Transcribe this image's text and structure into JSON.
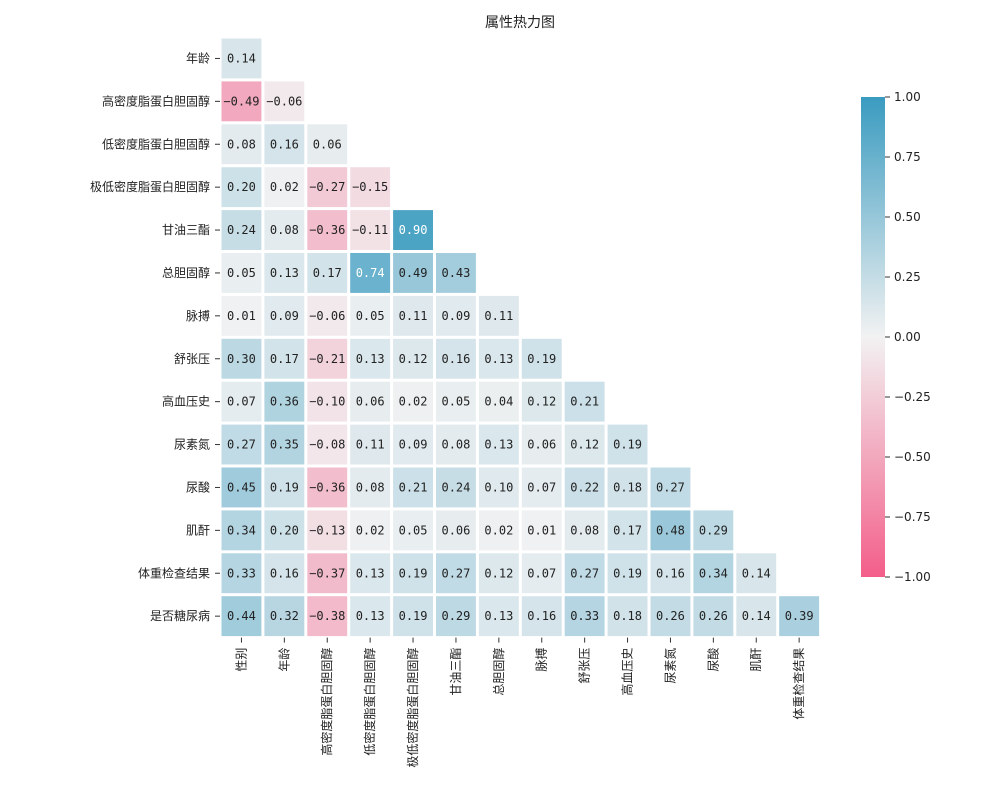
{
  "chart_data": {
    "type": "heatmap",
    "title": "属性热力图",
    "row_labels": [
      "年龄",
      "高密度脂蛋白胆固醇",
      "低密度脂蛋白胆固醇",
      "极低密度脂蛋白胆固醇",
      "甘油三酯",
      "总胆固醇",
      "脉搏",
      "舒张压",
      "高血压史",
      "尿素氮",
      "尿酸",
      "肌酐",
      "体重检查结果",
      "是否糖尿病"
    ],
    "col_labels": [
      "性别",
      "年龄",
      "高密度脂蛋白胆固醇",
      "低密度脂蛋白胆固醇",
      "极低密度脂蛋白胆固醇",
      "甘油三酯",
      "总胆固醇",
      "脉搏",
      "舒张压",
      "高血压史",
      "尿素氮",
      "尿酸",
      "肌酐",
      "体重检查结果"
    ],
    "values": [
      [
        0.14
      ],
      [
        -0.49,
        -0.06
      ],
      [
        0.08,
        0.16,
        0.06
      ],
      [
        0.2,
        0.02,
        -0.27,
        -0.15
      ],
      [
        0.24,
        0.08,
        -0.36,
        -0.11,
        0.9
      ],
      [
        0.05,
        0.13,
        0.17,
        0.74,
        0.49,
        0.43
      ],
      [
        0.01,
        0.09,
        -0.06,
        0.05,
        0.11,
        0.09,
        0.11
      ],
      [
        0.3,
        0.17,
        -0.21,
        0.13,
        0.12,
        0.16,
        0.13,
        0.19
      ],
      [
        0.07,
        0.36,
        -0.1,
        0.06,
        0.02,
        0.05,
        0.04,
        0.12,
        0.21
      ],
      [
        0.27,
        0.35,
        -0.08,
        0.11,
        0.09,
        0.08,
        0.13,
        0.06,
        0.12,
        0.19
      ],
      [
        0.45,
        0.19,
        -0.36,
        0.08,
        0.21,
        0.24,
        0.1,
        0.07,
        0.22,
        0.18,
        0.27
      ],
      [
        0.34,
        0.2,
        -0.13,
        0.02,
        0.05,
        0.06,
        0.02,
        0.01,
        0.08,
        0.17,
        0.48,
        0.29
      ],
      [
        0.33,
        0.16,
        -0.37,
        0.13,
        0.19,
        0.27,
        0.12,
        0.07,
        0.27,
        0.19,
        0.16,
        0.34,
        0.14
      ],
      [
        0.44,
        0.32,
        -0.38,
        0.13,
        0.19,
        0.29,
        0.13,
        0.16,
        0.33,
        0.18,
        0.26,
        0.26,
        0.14,
        0.39
      ]
    ],
    "colorbar": {
      "range": [
        -1,
        1
      ],
      "ticks": [
        "1.00",
        "0.75",
        "0.50",
        "0.25",
        "0.00",
        "−0.25",
        "−0.50",
        "−0.75",
        "−1.00"
      ],
      "negative_color": "#f35e89",
      "center_color": "#f2f2f2",
      "positive_color": "#3a9bc0"
    },
    "grid": false
  }
}
